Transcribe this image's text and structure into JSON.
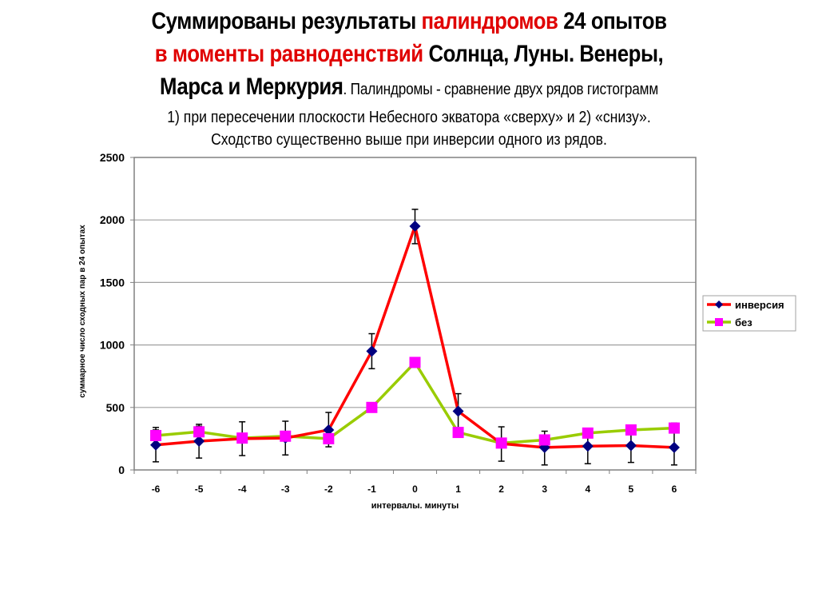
{
  "title": {
    "line1_a": "Суммированы результаты ",
    "line1_b": "палиндромов",
    "line1_c": " 24 опытов",
    "line2_a": "в моменты равноденствий",
    "line2_b": " Солнца, Луны. Венеры,",
    "line3_a": "Марса и Меркурия",
    "line3_b": ". Палиндромы  - сравнение двух рядов гистограмм",
    "line4": "1) при пересечении плоскости Небесного экватора «сверху» и 2) «снизу».",
    "line5": "Сходство существенно выше при инверсии одного из рядов."
  },
  "colors": {
    "highlight_red": "#e00000",
    "series_inversion_line": "#ff0000",
    "series_inversion_marker": "#000080",
    "series_bez_line": "#99cc00",
    "series_bez_marker": "#ff00ff",
    "gridline": "#a0a0a0",
    "plot_border": "#808080"
  },
  "chart_data": {
    "type": "line",
    "title": "",
    "xlabel": "интервалы. минуты",
    "ylabel": "суммарное число сходных пар в 24 опытах",
    "categories": [
      "-6",
      "-5",
      "-4",
      "-3",
      "-2",
      "-1",
      "0",
      "1",
      "2",
      "3",
      "4",
      "5",
      "6"
    ],
    "ylim": [
      0,
      2500
    ],
    "yticks": [
      0,
      500,
      1000,
      1500,
      2000,
      2500
    ],
    "grid": true,
    "legend_position": "right",
    "series": [
      {
        "name": "инверсия",
        "marker": "diamond",
        "values": [
          200,
          230,
          250,
          255,
          320,
          950,
          1950,
          470,
          210,
          180,
          190,
          195,
          180
        ],
        "error_low": [
          65,
          95,
          115,
          120,
          185,
          810,
          1810,
          290,
          70,
          40,
          50,
          60,
          40
        ],
        "error_high": [
          340,
          365,
          385,
          390,
          460,
          1090,
          2085,
          610,
          345,
          310,
          330,
          345,
          375
        ]
      },
      {
        "name": "без",
        "marker": "square",
        "values": [
          275,
          305,
          255,
          270,
          250,
          500,
          860,
          300,
          215,
          240,
          295,
          320,
          335
        ],
        "error_high": [
          320,
          350,
          255,
          300,
          250,
          520,
          880,
          300,
          215,
          240,
          320,
          345,
          370
        ]
      }
    ]
  }
}
